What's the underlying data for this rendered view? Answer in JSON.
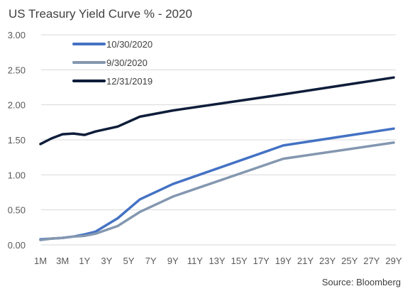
{
  "chart_data": {
    "type": "line",
    "title": "US Treasury Yield Curve % - 2020",
    "source": "Source: Bloomberg",
    "x_tick_labels": [
      "1M",
      "3M",
      "1Y",
      "3Y",
      "5Y",
      "7Y",
      "9Y",
      "11Y",
      "13Y",
      "15Y",
      "17Y",
      "19Y",
      "21Y",
      "23Y",
      "25Y",
      "27Y",
      "29Y"
    ],
    "y_tick_labels": [
      "0.00",
      "0.50",
      "1.00",
      "1.50",
      "2.00",
      "2.50",
      "3.00"
    ],
    "ylim": [
      0,
      3
    ],
    "y_ticks": [
      0,
      0.5,
      1,
      1.5,
      2,
      2.5,
      3
    ],
    "grid": "horizontal",
    "legend_position": "top-left",
    "series": [
      {
        "name": "10/30/2020",
        "color": "#4472c4",
        "x_years": [
          0.0833,
          0.25,
          0.5,
          1,
          2,
          3,
          5,
          7,
          10,
          20,
          30
        ],
        "values": [
          0.08,
          0.09,
          0.1,
          0.12,
          0.15,
          0.19,
          0.38,
          0.65,
          0.87,
          1.42,
          1.66
        ]
      },
      {
        "name": "9/30/2020",
        "color": "#8497b0",
        "x_years": [
          0.0833,
          0.25,
          0.5,
          1,
          2,
          3,
          5,
          7,
          10,
          20,
          30
        ],
        "values": [
          0.07,
          0.09,
          0.1,
          0.12,
          0.13,
          0.16,
          0.27,
          0.47,
          0.69,
          1.23,
          1.46
        ]
      },
      {
        "name": "12/31/2019",
        "color": "#0e1d3a",
        "x_years": [
          0.0833,
          0.25,
          0.5,
          1,
          2,
          3,
          5,
          7,
          10,
          20,
          30
        ],
        "values": [
          1.44,
          1.52,
          1.58,
          1.59,
          1.57,
          1.62,
          1.69,
          1.83,
          1.92,
          2.15,
          2.39
        ]
      }
    ]
  }
}
